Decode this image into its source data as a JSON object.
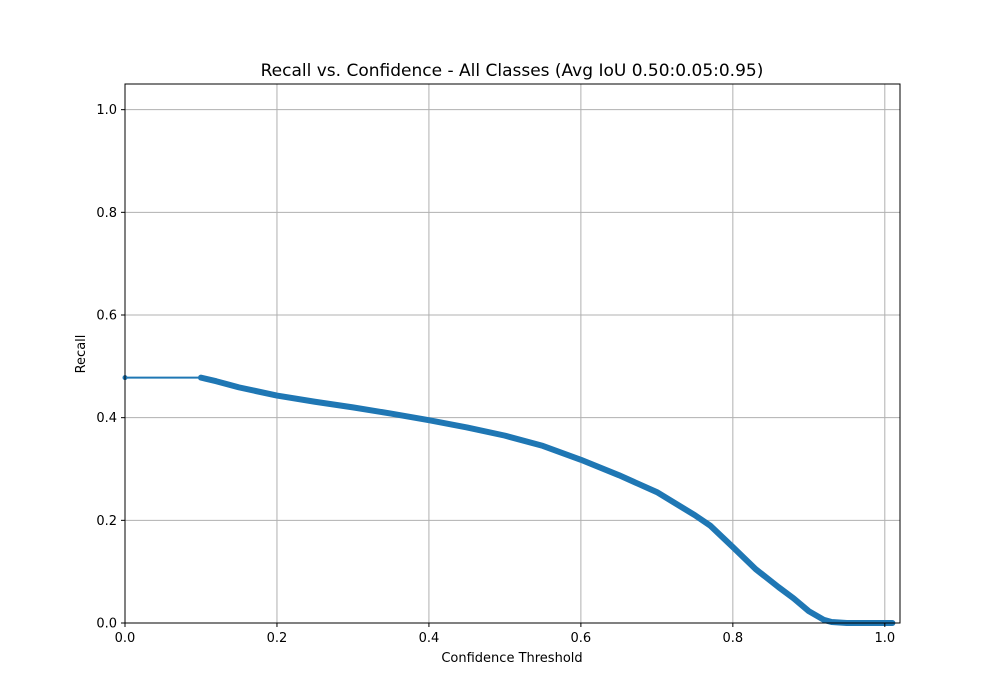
{
  "chart_data": {
    "type": "line",
    "title": "Recall vs. Confidence - All Classes (Avg IoU 0.50:0.05:0.95)",
    "xlabel": "Confidence Threshold",
    "ylabel": "Recall",
    "xlim": [
      0.0,
      1.02
    ],
    "ylim": [
      0.0,
      1.05
    ],
    "xticks": [
      0.0,
      0.2,
      0.4,
      0.6,
      0.8,
      1.0
    ],
    "xtick_labels": [
      "0.0",
      "0.2",
      "0.4",
      "0.6",
      "0.8",
      "1.0"
    ],
    "yticks": [
      0.0,
      0.2,
      0.4,
      0.6,
      0.8,
      1.0
    ],
    "ytick_labels": [
      "0.0",
      "0.2",
      "0.4",
      "0.6",
      "0.8",
      "1.0"
    ],
    "grid": true,
    "series": [
      {
        "color": "#1f77b4",
        "x": [
          0.0,
          0.1,
          0.12,
          0.15,
          0.2,
          0.25,
          0.3,
          0.35,
          0.4,
          0.45,
          0.5,
          0.55,
          0.6,
          0.65,
          0.7,
          0.75,
          0.77,
          0.8,
          0.83,
          0.86,
          0.88,
          0.9,
          0.92,
          0.93,
          0.95,
          0.98,
          1.01
        ],
        "y": [
          0.478,
          0.478,
          0.471,
          0.459,
          0.443,
          0.431,
          0.42,
          0.408,
          0.395,
          0.381,
          0.365,
          0.345,
          0.318,
          0.288,
          0.255,
          0.21,
          0.19,
          0.148,
          0.105,
          0.07,
          0.048,
          0.023,
          0.006,
          0.002,
          0.0,
          0.0,
          0.0
        ]
      }
    ]
  }
}
